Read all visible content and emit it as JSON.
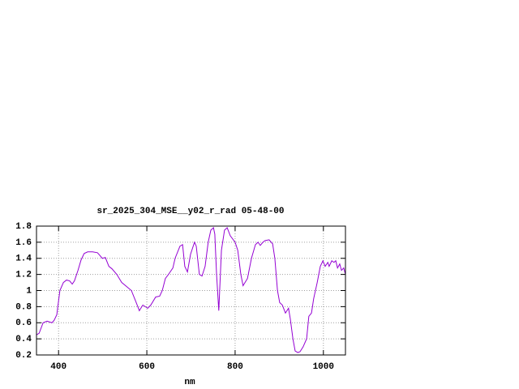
{
  "chart_data": {
    "type": "line",
    "title": "sr_2025_304_MSE__y02_r_rad 05-48-00",
    "x_label": "nm",
    "x": [
      350,
      356,
      365,
      374,
      385,
      390,
      396,
      403,
      411,
      418,
      425,
      431,
      436,
      444,
      451,
      458,
      466,
      477,
      488,
      493,
      499,
      506,
      514,
      521,
      532,
      543,
      554,
      565,
      576,
      583,
      591,
      602,
      609,
      620,
      629,
      635,
      642,
      649,
      659,
      664,
      675,
      681,
      686,
      692,
      699,
      708,
      712,
      719,
      725,
      732,
      739,
      745,
      751,
      754,
      758,
      763,
      769,
      776,
      782,
      789,
      800,
      806,
      813,
      818,
      828,
      837,
      846,
      852,
      857,
      863,
      868,
      877,
      885,
      890,
      896,
      901,
      907,
      914,
      921,
      925,
      931,
      936,
      942,
      947,
      954,
      962,
      967,
      973,
      978,
      986,
      993,
      999,
      1004,
      1010,
      1013,
      1019,
      1024,
      1028,
      1032,
      1037,
      1041,
      1046,
      1050
    ],
    "values": [
      0.45,
      0.47,
      0.6,
      0.62,
      0.6,
      0.63,
      0.7,
      1.0,
      1.1,
      1.13,
      1.12,
      1.08,
      1.12,
      1.25,
      1.38,
      1.46,
      1.48,
      1.48,
      1.47,
      1.44,
      1.4,
      1.41,
      1.3,
      1.27,
      1.2,
      1.1,
      1.05,
      1.0,
      0.85,
      0.75,
      0.82,
      0.78,
      0.82,
      0.92,
      0.93,
      1.0,
      1.15,
      1.2,
      1.28,
      1.4,
      1.55,
      1.57,
      1.3,
      1.23,
      1.45,
      1.6,
      1.55,
      1.2,
      1.18,
      1.3,
      1.6,
      1.75,
      1.78,
      1.7,
      1.2,
      0.75,
      1.5,
      1.75,
      1.78,
      1.68,
      1.6,
      1.5,
      1.2,
      1.06,
      1.15,
      1.4,
      1.57,
      1.6,
      1.56,
      1.6,
      1.62,
      1.63,
      1.58,
      1.4,
      1.0,
      0.85,
      0.82,
      0.72,
      0.78,
      0.65,
      0.4,
      0.25,
      0.23,
      0.24,
      0.3,
      0.4,
      0.68,
      0.72,
      0.9,
      1.1,
      1.3,
      1.37,
      1.3,
      1.35,
      1.3,
      1.37,
      1.35,
      1.37,
      1.28,
      1.33,
      1.25,
      1.28,
      1.2
    ],
    "color": "#9400d3",
    "xlim": [
      350,
      1050
    ],
    "xticks": [
      400,
      600,
      800,
      1000
    ],
    "ylim": [
      0.2,
      1.8
    ],
    "yticks": [
      0.2,
      0.4,
      0.6,
      0.8,
      1,
      1.2,
      1.4,
      1.6,
      1.8
    ],
    "grid": true
  }
}
